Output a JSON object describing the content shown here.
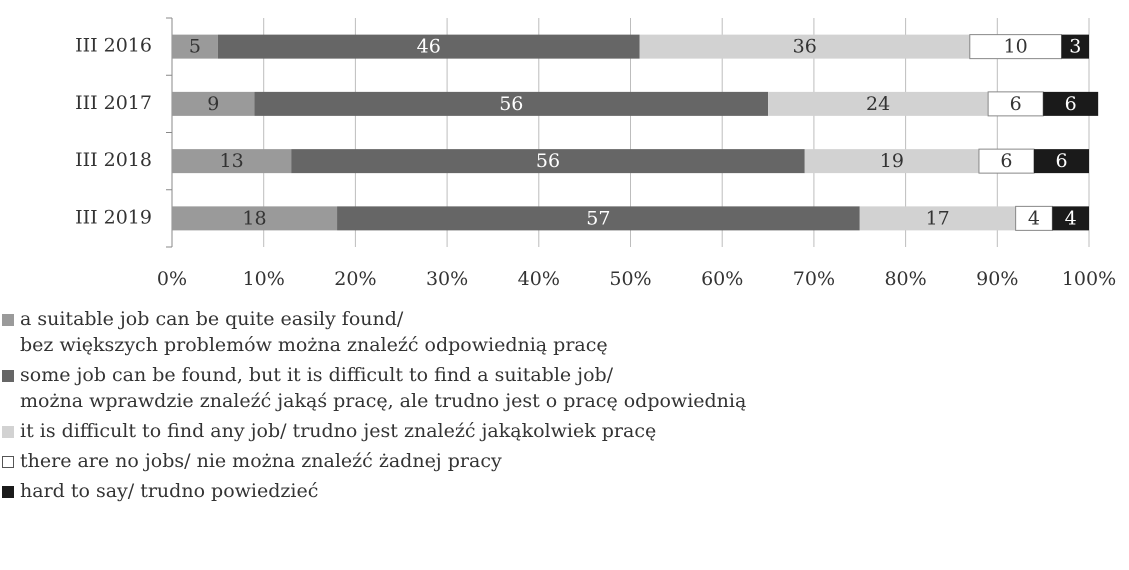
{
  "chart_data": {
    "type": "stacked-bar-horizontal",
    "categories": [
      "III 2016",
      "III 2017",
      "III 2018",
      "III 2019"
    ],
    "series": [
      {
        "name": "a suitable job can be quite easily found/\nbez większych problemów można znaleźć odpowiednią pracę",
        "color": "#9a9a9a",
        "values": [
          5,
          9,
          13,
          18
        ]
      },
      {
        "name": "some job can be found, but it is difficult to find a suitable job/\nmożna wprawdzie znaleźć jakąś pracę, ale trudno jest o pracę odpowiednią",
        "color": "#666666",
        "values": [
          46,
          56,
          56,
          57
        ]
      },
      {
        "name": "it is difficult to find any job/ trudno jest znaleźć jakąkolwiek pracę",
        "color": "#d2d2d2",
        "values": [
          36,
          24,
          19,
          17
        ]
      },
      {
        "name": "there are no jobs/ nie można znaleźć żadnej pracy",
        "color": "#ffffff",
        "values": [
          10,
          6,
          6,
          4
        ]
      },
      {
        "name": "hard to say/ trudno powiedzieć",
        "color": "#1a1a1a",
        "values": [
          3,
          6,
          6,
          4
        ]
      }
    ],
    "xlim": [
      0,
      100
    ],
    "xticks": [
      {
        "value": 0,
        "label": "0%"
      },
      {
        "value": 10,
        "label": "10%"
      },
      {
        "value": 20,
        "label": "20%"
      },
      {
        "value": 30,
        "label": "30%"
      },
      {
        "value": 40,
        "label": "40%"
      },
      {
        "value": 50,
        "label": "50%"
      },
      {
        "value": 60,
        "label": "60%"
      },
      {
        "value": 70,
        "label": "70%"
      },
      {
        "value": 80,
        "label": "80%"
      },
      {
        "value": 90,
        "label": "90%"
      },
      {
        "value": 100,
        "label": "100%"
      }
    ],
    "grid": true
  }
}
